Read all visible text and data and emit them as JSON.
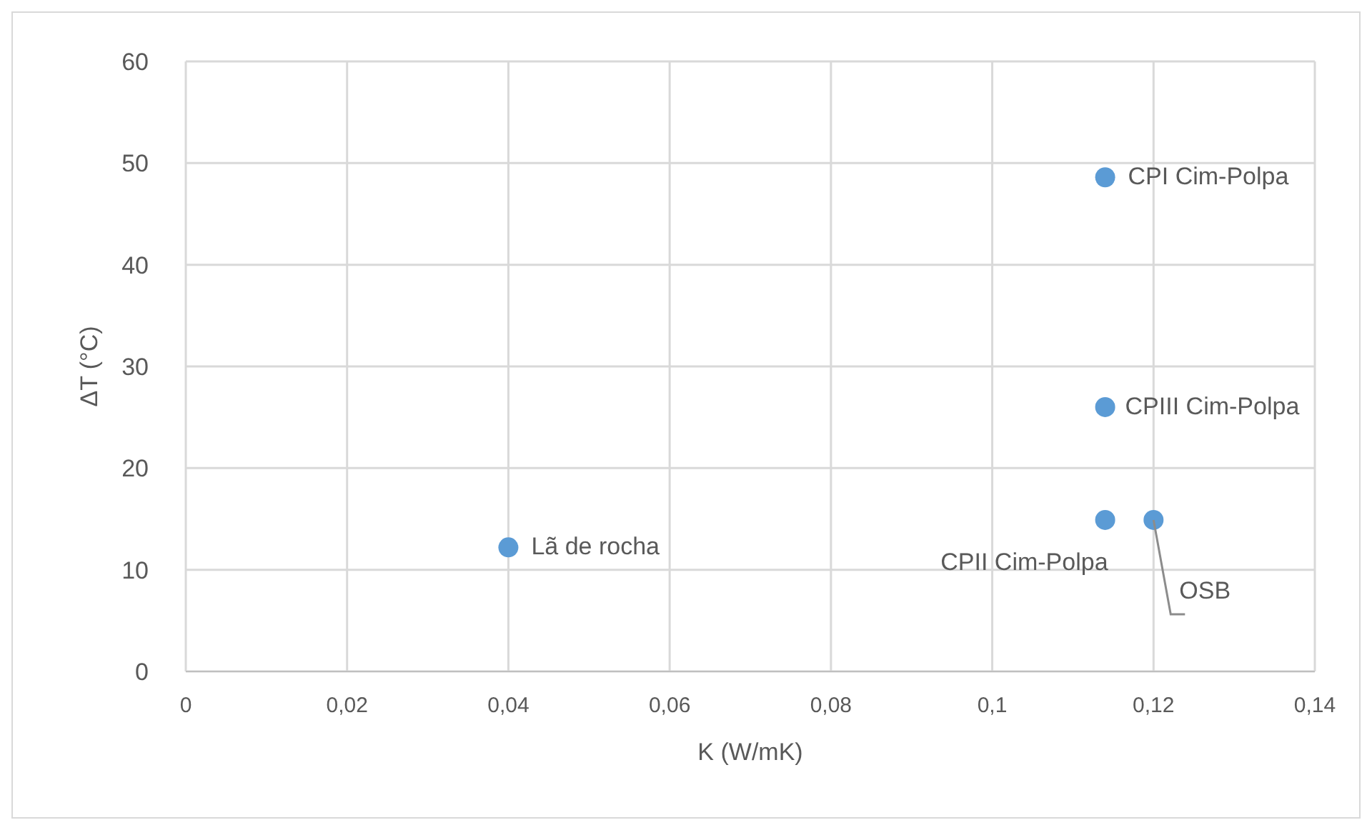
{
  "chart_data": {
    "type": "scatter",
    "xlabel": "K (W/mK)",
    "ylabel": "ΔT (°C)",
    "x": [
      0.04,
      0.114,
      0.114,
      0.114,
      0.12
    ],
    "series": [
      {
        "color": "#5b9bd5",
        "values": [
          12.2,
          48.6,
          26.0,
          14.9,
          14.9
        ]
      }
    ],
    "xlim": [
      0,
      0.14
    ],
    "xticks": [
      {
        "value": 0,
        "label": "0"
      },
      {
        "value": 0.02,
        "label": "0,02"
      },
      {
        "value": 0.04,
        "label": "0,04"
      },
      {
        "value": 0.06,
        "label": "0,06"
      },
      {
        "value": 0.08,
        "label": "0,08"
      },
      {
        "value": 0.1,
        "label": "0,1"
      },
      {
        "value": 0.12,
        "label": "0,12"
      },
      {
        "value": 0.14,
        "label": "0,14"
      }
    ],
    "ylim": [
      0,
      60
    ],
    "yticks": [
      0,
      10,
      20,
      30,
      40,
      50,
      60
    ],
    "grid": true,
    "marker": "circle",
    "annotations": [
      {
        "text": "Lã de rocha",
        "x": 0.04,
        "y": 12.2
      },
      {
        "text": "CPI Cim-Polpa",
        "x": 0.114,
        "y": 48.6
      },
      {
        "text": "CPIII Cim-Polpa",
        "x": 0.114,
        "y": 26.0
      },
      {
        "text": "CPII Cim-Polpa",
        "x": 0.114,
        "y": 14.9
      },
      {
        "text": "OSB",
        "x": 0.12,
        "y": 14.9
      }
    ]
  }
}
